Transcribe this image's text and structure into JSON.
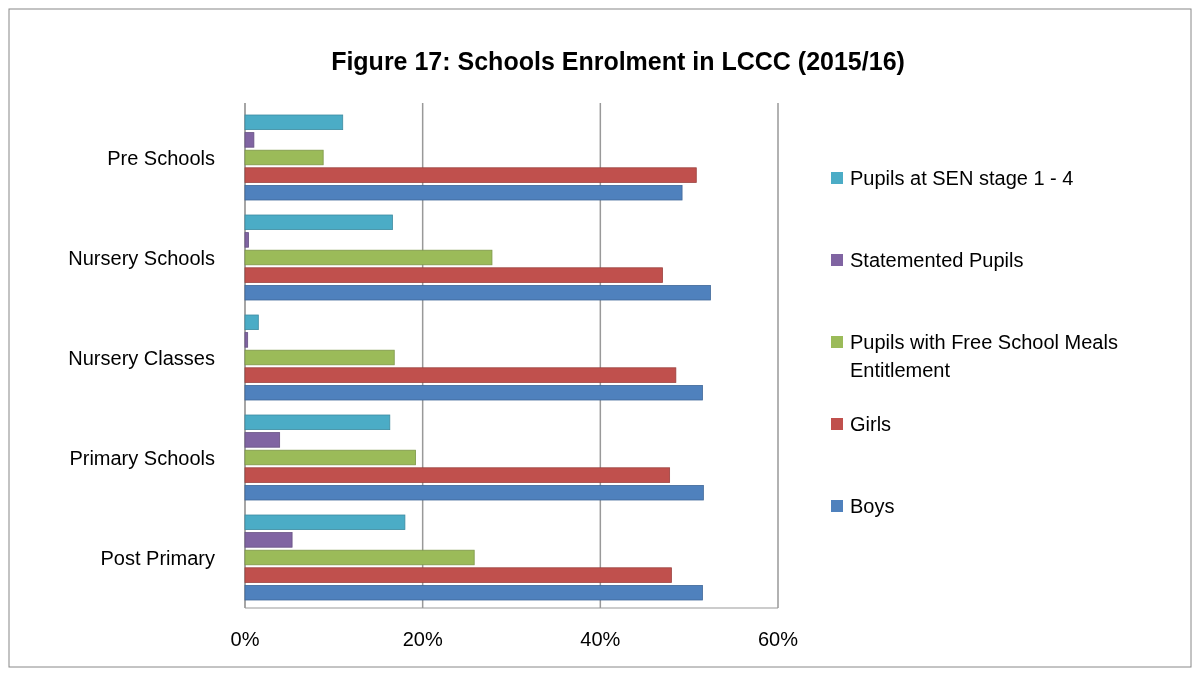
{
  "chart_data": {
    "type": "bar",
    "orientation": "horizontal",
    "title": "Figure 17:  Schools Enrolment in LCCC (2015/16)",
    "categories": [
      "Pre Schools",
      "Nursery Schools",
      "Nursery Classes",
      "Primary Schools",
      "Post Primary"
    ],
    "series": [
      {
        "name": "Pupils at SEN stage 1 - 4",
        "color": "#4bacc6",
        "values": [
          11,
          16.6,
          1.5,
          16.3,
          18
        ]
      },
      {
        "name": "Statemented Pupils",
        "color": "#8064a2",
        "values": [
          1,
          0.4,
          0.3,
          3.9,
          5.3
        ]
      },
      {
        "name": "Pupils with Free School Meals Entitlement",
        "color": "#9bbb59",
        "values": [
          8.8,
          27.8,
          16.8,
          19.2,
          25.8
        ]
      },
      {
        "name": "Girls",
        "color": "#c0504d",
        "values": [
          50.8,
          47,
          48.5,
          47.8,
          48
        ]
      },
      {
        "name": "Boys",
        "color": "#4f81bd",
        "values": [
          49.2,
          52.4,
          51.5,
          51.6,
          51.5
        ]
      }
    ],
    "xlim": [
      0,
      60
    ],
    "xticks": [
      {
        "value": 0,
        "label": "0%"
      },
      {
        "value": 20,
        "label": "20%"
      },
      {
        "value": 40,
        "label": "40%"
      },
      {
        "value": 60,
        "label": "60%"
      }
    ],
    "grid": "x",
    "legend": "right"
  }
}
